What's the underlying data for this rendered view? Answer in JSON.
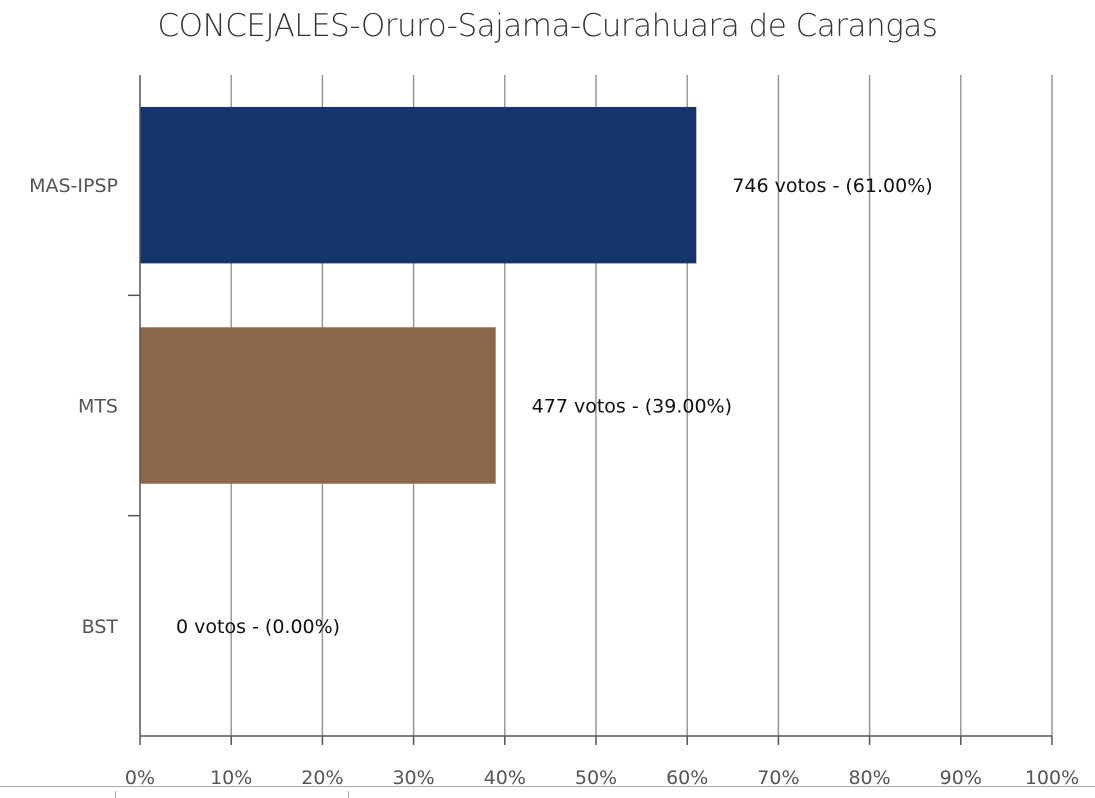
{
  "chart_data": {
    "type": "bar",
    "orientation": "horizontal",
    "title": "CONCEJALES-Oruro-Sajama-Curahuara de Carangas",
    "categories": [
      "MAS-IPSP",
      "MTS",
      "BST"
    ],
    "values": [
      61.0,
      39.0,
      0.0
    ],
    "votes": [
      746,
      477,
      0
    ],
    "data_labels": [
      "746 votos - (61.00%)",
      "477 votos - (39.00%)",
      "0 votos - (0.00%)"
    ],
    "colors": [
      "#15346b",
      "#8b674b",
      "#cccccc"
    ],
    "xlim": [
      0,
      100
    ],
    "xticks": [
      "0%",
      "10%",
      "20%",
      "30%",
      "40%",
      "50%",
      "60%",
      "70%",
      "80%",
      "90%",
      "100%"
    ],
    "xlabel": "",
    "ylabel": "",
    "grid": true,
    "legend": "none"
  }
}
